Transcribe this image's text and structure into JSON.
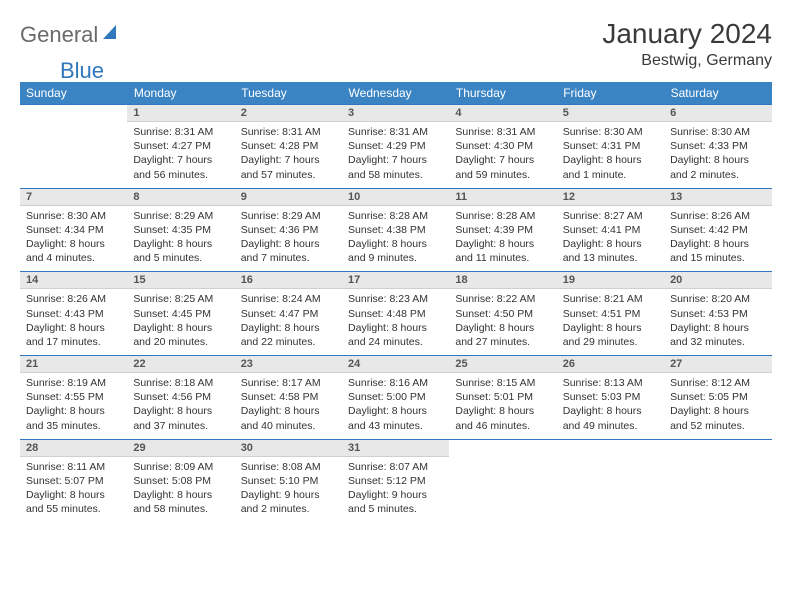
{
  "brand": {
    "general": "General",
    "blue": "Blue"
  },
  "title": "January 2024",
  "location": "Bestwig, Germany",
  "colors": {
    "header_bg": "#3b84c4",
    "header_text": "#ffffff",
    "daynum_bg": "#e8e8e8",
    "daynum_border_top": "#2f78bd",
    "body_text": "#333333",
    "logo_gray": "#6b6b6b",
    "logo_blue": "#2f78bd"
  },
  "weekdays": [
    "Sunday",
    "Monday",
    "Tuesday",
    "Wednesday",
    "Thursday",
    "Friday",
    "Saturday"
  ],
  "weeks": [
    [
      null,
      {
        "n": "1",
        "sr": "8:31 AM",
        "ss": "4:27 PM",
        "dl": "7 hours and 56 minutes."
      },
      {
        "n": "2",
        "sr": "8:31 AM",
        "ss": "4:28 PM",
        "dl": "7 hours and 57 minutes."
      },
      {
        "n": "3",
        "sr": "8:31 AM",
        "ss": "4:29 PM",
        "dl": "7 hours and 58 minutes."
      },
      {
        "n": "4",
        "sr": "8:31 AM",
        "ss": "4:30 PM",
        "dl": "7 hours and 59 minutes."
      },
      {
        "n": "5",
        "sr": "8:30 AM",
        "ss": "4:31 PM",
        "dl": "8 hours and 1 minute."
      },
      {
        "n": "6",
        "sr": "8:30 AM",
        "ss": "4:33 PM",
        "dl": "8 hours and 2 minutes."
      }
    ],
    [
      {
        "n": "7",
        "sr": "8:30 AM",
        "ss": "4:34 PM",
        "dl": "8 hours and 4 minutes."
      },
      {
        "n": "8",
        "sr": "8:29 AM",
        "ss": "4:35 PM",
        "dl": "8 hours and 5 minutes."
      },
      {
        "n": "9",
        "sr": "8:29 AM",
        "ss": "4:36 PM",
        "dl": "8 hours and 7 minutes."
      },
      {
        "n": "10",
        "sr": "8:28 AM",
        "ss": "4:38 PM",
        "dl": "8 hours and 9 minutes."
      },
      {
        "n": "11",
        "sr": "8:28 AM",
        "ss": "4:39 PM",
        "dl": "8 hours and 11 minutes."
      },
      {
        "n": "12",
        "sr": "8:27 AM",
        "ss": "4:41 PM",
        "dl": "8 hours and 13 minutes."
      },
      {
        "n": "13",
        "sr": "8:26 AM",
        "ss": "4:42 PM",
        "dl": "8 hours and 15 minutes."
      }
    ],
    [
      {
        "n": "14",
        "sr": "8:26 AM",
        "ss": "4:43 PM",
        "dl": "8 hours and 17 minutes."
      },
      {
        "n": "15",
        "sr": "8:25 AM",
        "ss": "4:45 PM",
        "dl": "8 hours and 20 minutes."
      },
      {
        "n": "16",
        "sr": "8:24 AM",
        "ss": "4:47 PM",
        "dl": "8 hours and 22 minutes."
      },
      {
        "n": "17",
        "sr": "8:23 AM",
        "ss": "4:48 PM",
        "dl": "8 hours and 24 minutes."
      },
      {
        "n": "18",
        "sr": "8:22 AM",
        "ss": "4:50 PM",
        "dl": "8 hours and 27 minutes."
      },
      {
        "n": "19",
        "sr": "8:21 AM",
        "ss": "4:51 PM",
        "dl": "8 hours and 29 minutes."
      },
      {
        "n": "20",
        "sr": "8:20 AM",
        "ss": "4:53 PM",
        "dl": "8 hours and 32 minutes."
      }
    ],
    [
      {
        "n": "21",
        "sr": "8:19 AM",
        "ss": "4:55 PM",
        "dl": "8 hours and 35 minutes."
      },
      {
        "n": "22",
        "sr": "8:18 AM",
        "ss": "4:56 PM",
        "dl": "8 hours and 37 minutes."
      },
      {
        "n": "23",
        "sr": "8:17 AM",
        "ss": "4:58 PM",
        "dl": "8 hours and 40 minutes."
      },
      {
        "n": "24",
        "sr": "8:16 AM",
        "ss": "5:00 PM",
        "dl": "8 hours and 43 minutes."
      },
      {
        "n": "25",
        "sr": "8:15 AM",
        "ss": "5:01 PM",
        "dl": "8 hours and 46 minutes."
      },
      {
        "n": "26",
        "sr": "8:13 AM",
        "ss": "5:03 PM",
        "dl": "8 hours and 49 minutes."
      },
      {
        "n": "27",
        "sr": "8:12 AM",
        "ss": "5:05 PM",
        "dl": "8 hours and 52 minutes."
      }
    ],
    [
      {
        "n": "28",
        "sr": "8:11 AM",
        "ss": "5:07 PM",
        "dl": "8 hours and 55 minutes."
      },
      {
        "n": "29",
        "sr": "8:09 AM",
        "ss": "5:08 PM",
        "dl": "8 hours and 58 minutes."
      },
      {
        "n": "30",
        "sr": "8:08 AM",
        "ss": "5:10 PM",
        "dl": "9 hours and 2 minutes."
      },
      {
        "n": "31",
        "sr": "8:07 AM",
        "ss": "5:12 PM",
        "dl": "9 hours and 5 minutes."
      },
      null,
      null,
      null
    ]
  ],
  "labels": {
    "sunrise": "Sunrise:",
    "sunset": "Sunset:",
    "daylight": "Daylight:"
  }
}
